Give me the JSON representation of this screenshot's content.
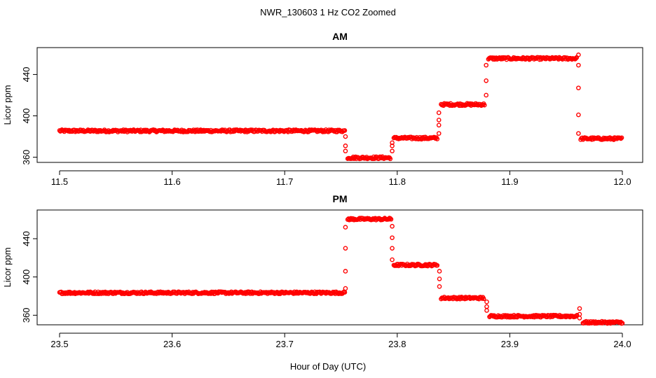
{
  "figure": {
    "title": "NWR_130603  1 Hz CO2 Zoomed",
    "xlabel": "Hour of Day (UTC)"
  },
  "colors": {
    "points": "#ff0000",
    "axis": "#000000",
    "background": "#ffffff"
  },
  "chart_data": [
    {
      "type": "scatter",
      "title": "AM",
      "ylabel": "Licor ppm",
      "xlim": [
        11.5,
        12.0
      ],
      "ylim": [
        355,
        466
      ],
      "xticks": [
        11.5,
        11.6,
        11.7,
        11.8,
        11.9,
        12.0
      ],
      "xtick_labels": [
        "11.5",
        "11.6",
        "11.7",
        "11.8",
        "11.9",
        "12.0"
      ],
      "yticks": [
        360,
        400,
        440
      ],
      "ytick_labels": [
        "360",
        "400",
        "440"
      ],
      "grid": false,
      "legend": "none",
      "segments": [
        {
          "x0": 11.5,
          "x1": 11.754,
          "y": 385.5
        },
        {
          "x0": 11.756,
          "x1": 11.794,
          "y": 359.5
        },
        {
          "x0": 11.797,
          "x1": 11.836,
          "y": 378.5
        },
        {
          "x0": 11.839,
          "x1": 11.878,
          "y": 411
        },
        {
          "x0": 11.881,
          "x1": 11.96,
          "y": 455.5
        },
        {
          "x0": 11.963,
          "x1": 12.0,
          "y": 378
        }
      ],
      "transitions": [
        {
          "x": 11.754,
          "y": [
            366,
            371,
            380
          ]
        },
        {
          "x": 11.7955,
          "y": [
            366,
            371,
            374
          ]
        },
        {
          "x": 11.837,
          "y": [
            383,
            391,
            396,
            403
          ]
        },
        {
          "x": 11.879,
          "y": [
            420,
            434,
            449
          ]
        },
        {
          "x": 11.961,
          "y": [
            459,
            449,
            427,
            401,
            383
          ]
        }
      ]
    },
    {
      "type": "scatter",
      "title": "PM",
      "ylabel": "Licor ppm",
      "xlim": [
        23.5,
        24.0
      ],
      "ylim": [
        350,
        470
      ],
      "xticks": [
        23.5,
        23.6,
        23.7,
        23.8,
        23.9,
        24.0
      ],
      "xtick_labels": [
        "23.5",
        "23.6",
        "23.7",
        "23.8",
        "23.9",
        "24.0"
      ],
      "yticks": [
        360,
        400,
        440
      ],
      "ytick_labels": [
        "360",
        "400",
        "440"
      ],
      "grid": false,
      "legend": "none",
      "segments": [
        {
          "x0": 23.5,
          "x1": 23.754,
          "y": 383.5
        },
        {
          "x0": 23.756,
          "x1": 23.795,
          "y": 460.5
        },
        {
          "x0": 23.797,
          "x1": 23.836,
          "y": 412.5
        },
        {
          "x0": 23.839,
          "x1": 23.877,
          "y": 378
        },
        {
          "x0": 23.882,
          "x1": 23.96,
          "y": 359
        },
        {
          "x0": 23.965,
          "x1": 24.0,
          "y": 352.5
        }
      ],
      "transitions": [
        {
          "x": 23.754,
          "y": [
            388,
            406,
            430,
            452
          ]
        },
        {
          "x": 23.7955,
          "y": [
            453,
            441,
            430,
            418
          ]
        },
        {
          "x": 23.8375,
          "y": [
            406,
            398,
            390
          ]
        },
        {
          "x": 23.8795,
          "y": [
            374,
            369,
            365
          ]
        },
        {
          "x": 23.962,
          "y": [
            367,
            361,
            357
          ]
        }
      ]
    }
  ]
}
